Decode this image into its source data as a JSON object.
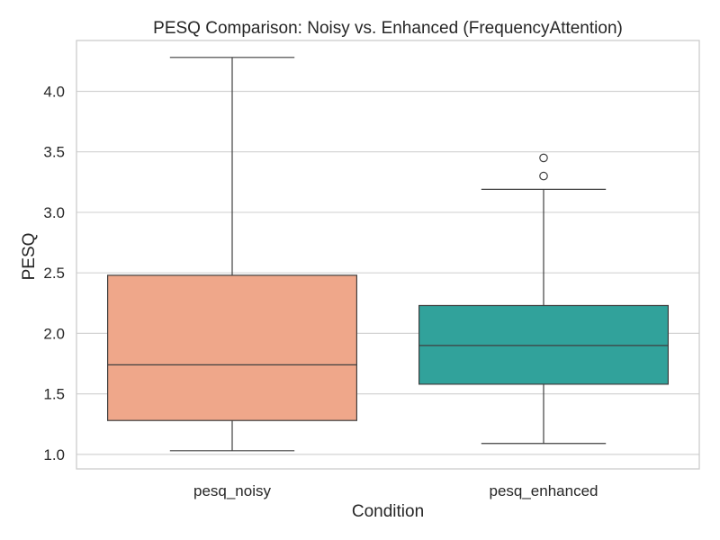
{
  "chart_data": {
    "type": "box",
    "title": "PESQ Comparison: Noisy vs. Enhanced (FrequencyAttention)",
    "xlabel": "Condition",
    "ylabel": "PESQ",
    "categories": [
      "pesq_noisy",
      "pesq_enhanced"
    ],
    "ylim": [
      0.88,
      4.42
    ],
    "yticks": [
      1.0,
      1.5,
      2.0,
      2.5,
      3.0,
      3.5,
      4.0
    ],
    "ytick_labels": [
      "1.0",
      "1.5",
      "2.0",
      "2.5",
      "3.0",
      "3.5",
      "4.0"
    ],
    "grid": "horizontal",
    "boxes": [
      {
        "category": "pesq_noisy",
        "whisker_low": 1.03,
        "q1": 1.28,
        "median": 1.74,
        "q3": 2.48,
        "whisker_high": 4.28,
        "outliers": [],
        "color": "#EFA78A"
      },
      {
        "category": "pesq_enhanced",
        "whisker_low": 1.09,
        "q1": 1.58,
        "median": 1.9,
        "q3": 2.23,
        "whisker_high": 3.19,
        "outliers": [
          3.3,
          3.45
        ],
        "color": "#31A29B"
      }
    ]
  }
}
